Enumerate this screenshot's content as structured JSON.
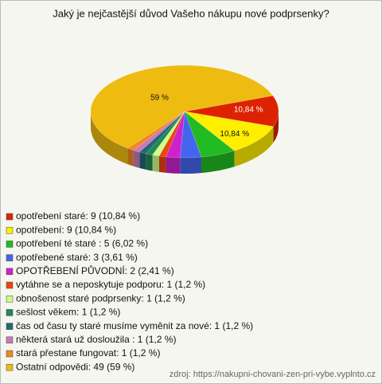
{
  "chart_data": {
    "type": "pie",
    "title": "Jaký je nejčastější důvod Vašeho nákupu nové podprsenky?",
    "categories": [
      "opotřebení staré: 9 (10,84 %)",
      "opotřebení: 9 (10,84 %)",
      "opotřebení té staré : 5 (6,02 %)",
      "opotřebené staré: 3 (3,61 %)",
      "OPOTŘEBENÍ PŮVODNÍ: 2 (2,41 %)",
      "vytáhne se a neposkytuje podporu: 1 (1,2 %)",
      "obnošenost staré podprsenky: 1 (1,2 %)",
      "sešlost věkem: 1 (1,2 %)",
      "čas od času ty staré musíme vyměnit za nové: 1 (1,2 %)",
      "některá stará už dosloužila : 1 (1,2 %)",
      "stará přestane fungovat: 1 (1,2 %)",
      "Ostatní odpovědi: 49 (59 %)"
    ],
    "values": [
      10.84,
      10.84,
      6.02,
      3.61,
      2.41,
      1.2,
      1.2,
      1.2,
      1.2,
      1.2,
      1.2,
      59
    ],
    "value_labels": [
      "10,84 %",
      "10,84 %",
      null,
      null,
      null,
      null,
      null,
      null,
      null,
      null,
      null,
      "59 %"
    ],
    "colors": [
      "#dd2200",
      "#ffee00",
      "#22bb22",
      "#4466ee",
      "#cc22cc",
      "#ee4411",
      "#ccff88",
      "#228855",
      "#226677",
      "#cc77bb",
      "#ee8822",
      "#eebb11"
    ],
    "source": "zdroj: https://nakupni-chovani-zen-pri-vybe.vyplnto.cz"
  }
}
